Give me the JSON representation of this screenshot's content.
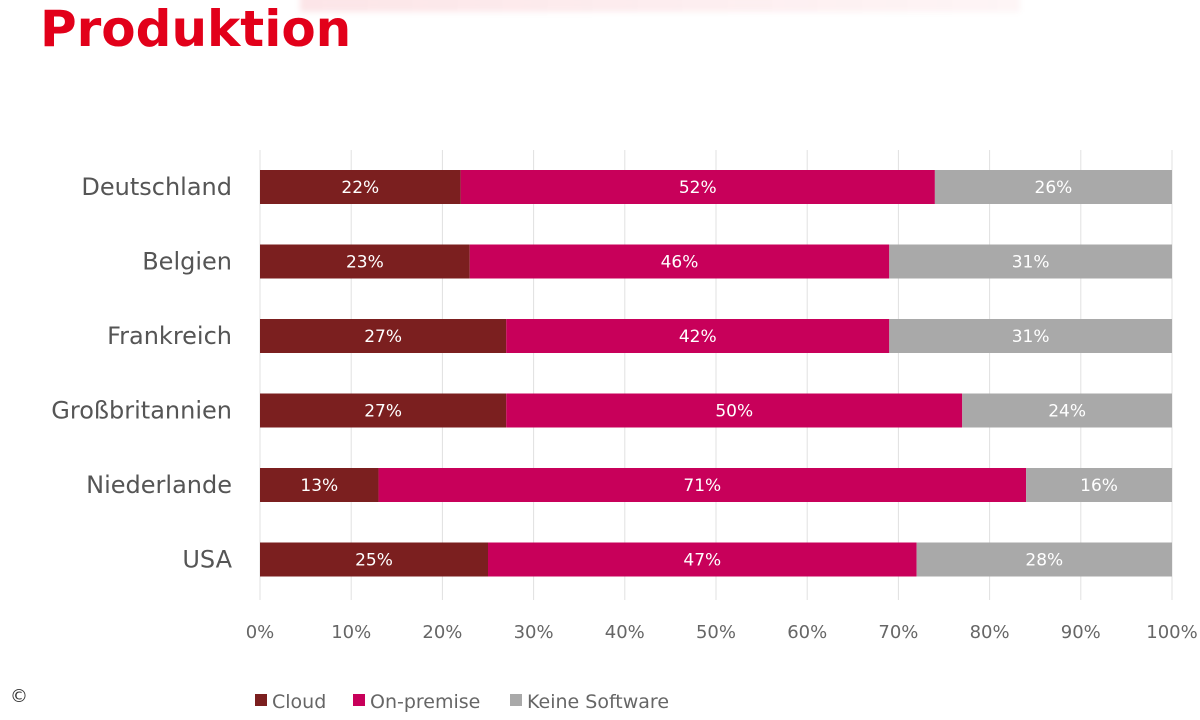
{
  "title": "Produktion",
  "copyright": "©",
  "colors": {
    "title": "#e2001a",
    "Cloud": "#7b1f1f",
    "On-premise": "#c8005a",
    "Keine Software": "#a9a9a9",
    "grid": "#e0e0e0"
  },
  "chart_data": {
    "type": "bar",
    "orientation": "horizontal",
    "stacked": true,
    "title": "Produktion",
    "xlabel": "",
    "ylabel": "",
    "xlim": [
      0,
      100
    ],
    "x_ticks": [
      "0%",
      "10%",
      "20%",
      "30%",
      "40%",
      "50%",
      "60%",
      "70%",
      "80%",
      "90%",
      "100%"
    ],
    "grid": true,
    "legend_position": "bottom",
    "categories": [
      "Deutschland",
      "Belgien",
      "Frankreich",
      "Großbritannien",
      "Niederlande",
      "USA"
    ],
    "series": [
      {
        "name": "Cloud",
        "values": [
          22,
          23,
          27,
          27,
          13,
          25
        ],
        "labels": [
          "22%",
          "23%",
          "27%",
          "27%",
          "13%",
          "25%"
        ]
      },
      {
        "name": "On-premise",
        "values": [
          52,
          46,
          42,
          50,
          71,
          47
        ],
        "labels": [
          "52%",
          "46%",
          "42%",
          "50%",
          "71%",
          "47%"
        ]
      },
      {
        "name": "Keine Software",
        "values": [
          26,
          31,
          31,
          24,
          16,
          28
        ],
        "labels": [
          "26%",
          "31%",
          "31%",
          "24%",
          "16%",
          "28%"
        ]
      }
    ]
  }
}
